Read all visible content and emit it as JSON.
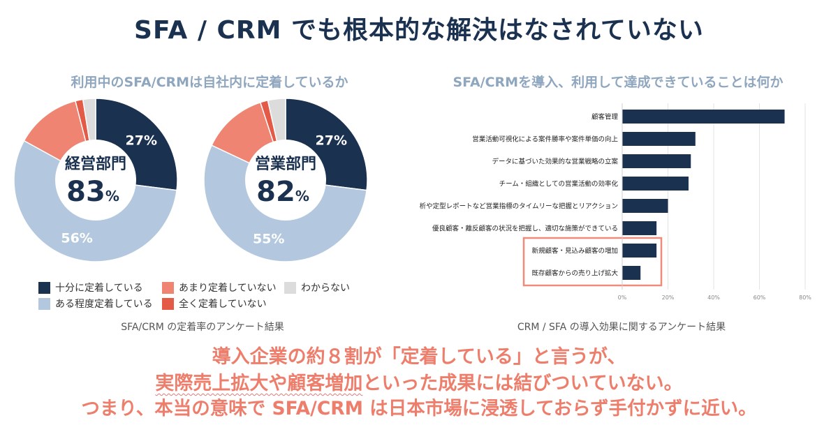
{
  "title": "SFA / CRM でも根本的な解決はなされていない",
  "colors": {
    "navy": "#1b3150",
    "light_blue": "#b3c8de",
    "salmon": "#ee8471",
    "red": "#e35a47",
    "gray": "#dcdcdc",
    "coral_text": "#ee7e6c",
    "highlight_border": "#f08a7a"
  },
  "left_panel": {
    "title": "利用中のSFA/CRMは自社内に定着しているか",
    "caption": "SFA/CRM の定着率のアンケート結果",
    "legend": [
      {
        "label": "十分に定着している",
        "color": "#1b3150"
      },
      {
        "label": "あまり定着していない",
        "color": "#ee8471"
      },
      {
        "label": "わからない",
        "color": "#dcdcdc"
      },
      {
        "label": "ある程度定着している",
        "color": "#b3c8de"
      },
      {
        "label": "全く定着していない",
        "color": "#e35a47"
      }
    ]
  },
  "right_panel": {
    "title": "SFA/CRMを導入、利用して達成できていることは何か",
    "caption": "CRM / SFA の導入効果に関するアンケート結果"
  },
  "chart_data": [
    {
      "type": "pie",
      "center_label": "経営部門",
      "center_value": "83",
      "center_unit": "%",
      "slices": [
        {
          "label": "十分に定着している",
          "value": 27,
          "display": "27%"
        },
        {
          "label": "ある程度定着している",
          "value": 56,
          "display": "56%"
        },
        {
          "label": "あまり定着していない",
          "value": 13,
          "display": ""
        },
        {
          "label": "全く定着していない",
          "value": 1.5,
          "display": ""
        },
        {
          "label": "わからない",
          "value": 2.5,
          "display": ""
        }
      ]
    },
    {
      "type": "pie",
      "center_label": "営業部門",
      "center_value": "82",
      "center_unit": "%",
      "slices": [
        {
          "label": "十分に定着している",
          "value": 27,
          "display": "27%"
        },
        {
          "label": "ある程度定着している",
          "value": 55,
          "display": "55%"
        },
        {
          "label": "あまり定着していない",
          "value": 13,
          "display": ""
        },
        {
          "label": "全く定着していない",
          "value": 1.5,
          "display": ""
        },
        {
          "label": "わからない",
          "value": 3.5,
          "display": ""
        }
      ]
    },
    {
      "type": "bar",
      "orientation": "horizontal",
      "categories": [
        "顧客管理",
        "営業活動可視化による案件勝率や案件単価の向上",
        "データに基づいた効果的な営業戦略の立案",
        "チーム・組織としての営業活動の効率化",
        "分析や定型レポートなど営業指標のタイムリーな把握とリアクション",
        "優良顧客・離反顧客の状況を把握し、適切な施策ができている",
        "新規顧客・見込み顧客の増加",
        "既存顧客からの売り上げ拡大"
      ],
      "values": [
        71,
        32,
        30,
        29,
        20,
        15,
        15,
        8
      ],
      "xlim": [
        0,
        80
      ],
      "xticks": [
        "0%",
        "20%",
        "40%",
        "60%",
        "80%"
      ],
      "grid": true,
      "highlighted": [
        6,
        7
      ]
    }
  ],
  "conclusion": {
    "line1": "導入企業の約８割が「定着している」と言うが、",
    "line2_underlined": "実際売上拡大や顧客増加",
    "line2_rest": "といった成果には結びついていない。",
    "line3": "つまり、本当の意味で SFA/CRM は日本市場に浸透しておらず手付かずに近い。"
  }
}
